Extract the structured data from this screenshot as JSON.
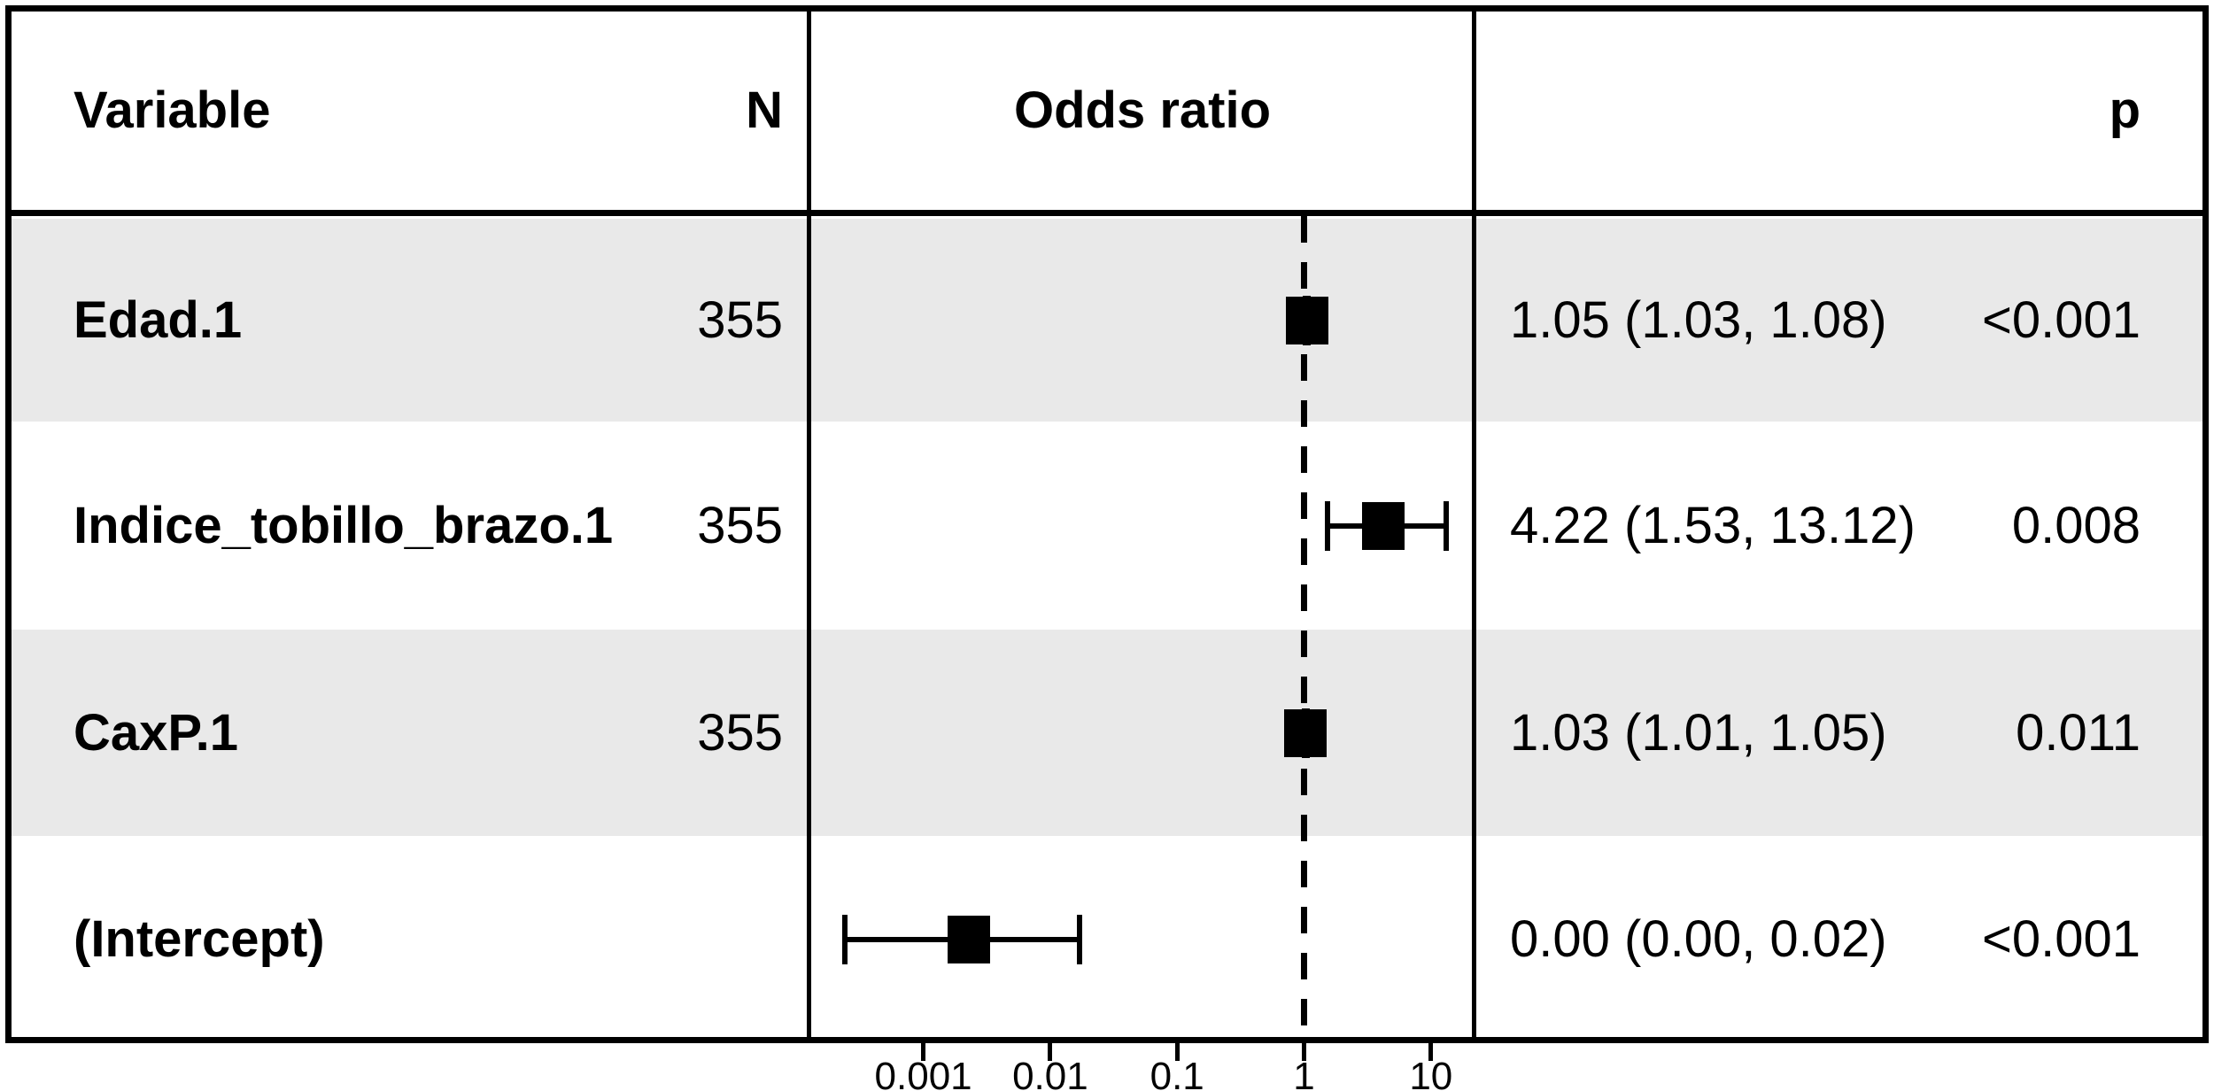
{
  "chart_data": {
    "type": "forest",
    "header": {
      "variable": "Variable",
      "n": "N",
      "plot": "Odds ratio",
      "p": "p"
    },
    "x_axis": {
      "scale": "log10",
      "ticks": [
        0.001,
        0.01,
        0.1,
        1,
        10
      ],
      "tick_labels": [
        "0.001",
        "0.01",
        "0.1",
        "1",
        "10"
      ],
      "reference_line": 1
    },
    "rows": [
      {
        "variable": "Edad.1",
        "n": "355",
        "or_text": "1.05 (1.03, 1.08)",
        "p": "<0.001",
        "est": 1.05,
        "lo": 1.03,
        "hi": 1.08,
        "shaded": true
      },
      {
        "variable": "Indice_tobillo_brazo.1",
        "n": "355",
        "or_text": "4.22 (1.53, 13.12)",
        "p": "0.008",
        "est": 4.22,
        "lo": 1.53,
        "hi": 13.12,
        "shaded": false
      },
      {
        "variable": "CaxP.1",
        "n": "355",
        "or_text": "1.03 (1.01, 1.05)",
        "p": "0.011",
        "est": 1.03,
        "lo": 1.01,
        "hi": 1.05,
        "shaded": true
      },
      {
        "variable": "(Intercept)",
        "n": "",
        "or_text": "0.00 (0.00, 0.02)",
        "p": "<0.001",
        "est": 0.0023,
        "lo": 0.00024,
        "hi": 0.017,
        "shaded": false
      }
    ],
    "colors": {
      "stripe": "#e9e9e9",
      "marker": "#000000",
      "border": "#000000",
      "background": "#ffffff",
      "text": "#000000"
    }
  }
}
